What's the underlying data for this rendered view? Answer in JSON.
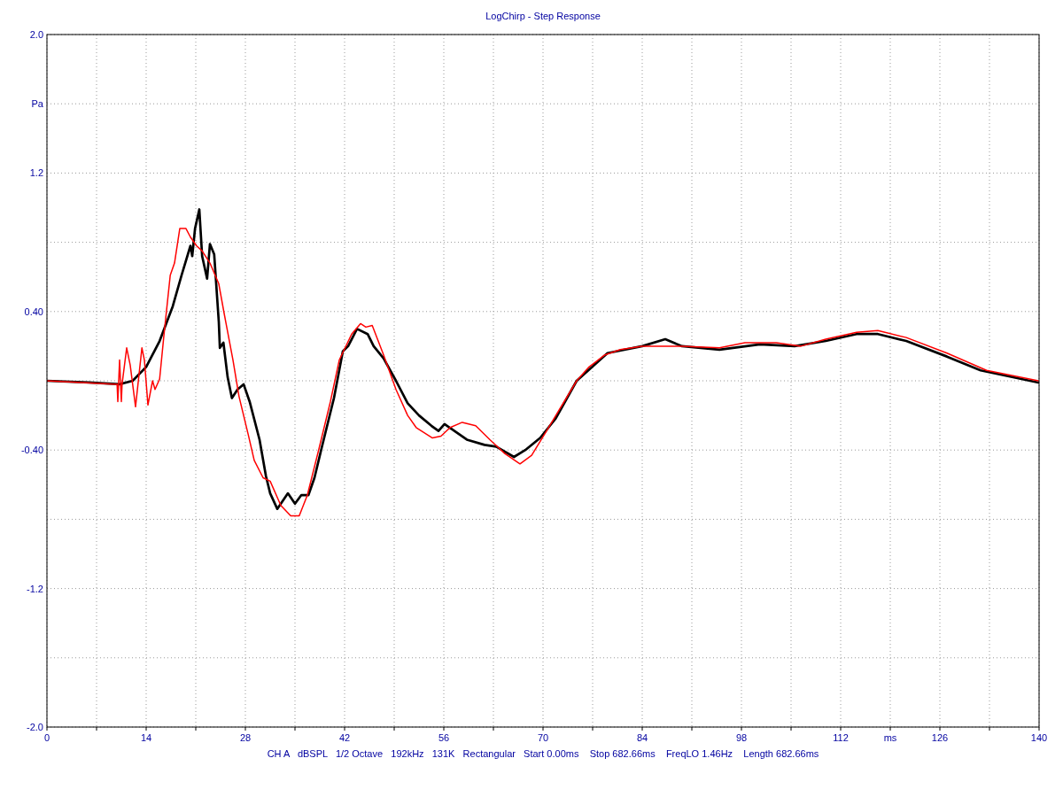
{
  "chart_data": {
    "type": "line",
    "title": "LogChirp - Step Response",
    "annotations": [
      "CH A   dBSPL   1/2 Octave   192kHz   131K   Rectangular   Start 0.00ms    Stop 682.66ms    FreqLO 1.46Hz    Length 682.66ms"
    ],
    "xlim": [
      0,
      140
    ],
    "ylim": [
      -2.0,
      2.0
    ],
    "xticks": [
      0,
      {
        "value": 7,
        "label": null
      },
      14,
      {
        "value": 21,
        "label": null
      },
      28,
      {
        "value": 35,
        "label": null
      },
      42,
      {
        "value": 49,
        "label": null
      },
      56,
      {
        "value": 63,
        "label": null
      },
      70,
      {
        "value": 77,
        "label": null
      },
      84,
      {
        "value": 91,
        "label": null
      },
      98,
      {
        "value": 105,
        "label": null
      },
      112,
      {
        "value": 119,
        "label": "ms"
      },
      126,
      {
        "value": 133,
        "label": null
      },
      140
    ],
    "yticks": [
      {
        "value": -2.0,
        "label": "-2.0"
      },
      {
        "value": -1.6,
        "label": null
      },
      -1.2,
      {
        "value": -0.8,
        "label": null
      },
      {
        "value": -0.4,
        "label": "-0.40"
      },
      {
        "value": 0,
        "label": null
      },
      {
        "value": 0.4,
        "label": "0.40"
      },
      {
        "value": 0.8,
        "label": null
      },
      1.2,
      {
        "value": 1.6,
        "label": "Pa"
      },
      {
        "value": 2.0,
        "label": "2.0"
      }
    ],
    "grid": true,
    "series": [
      {
        "color": "#000000",
        "x": [
          0,
          5.9,
          10.25,
          12.1,
          14,
          15.9,
          17.75,
          19,
          20.25,
          20.5,
          20.9,
          21.5,
          21.9,
          22.6,
          23,
          23.6,
          24.25,
          24.4,
          24.9,
          25.5,
          26.1,
          26.9,
          27.75,
          28.6,
          30,
          30.9,
          31.5,
          32.5,
          34,
          35,
          35.9,
          36.9,
          37.75,
          38.75,
          40.5,
          41.75,
          42.5,
          43.75,
          45.25,
          46.1,
          47.5,
          49.25,
          50.9,
          52.5,
          54.25,
          55.25,
          56.1,
          57.5,
          59.25,
          61.75,
          63.4,
          65.9,
          67.5,
          69.6,
          71.75,
          74.75,
          79.1,
          84,
          87.25,
          89.6,
          94.9,
          100.6,
          105.5,
          109.9,
          114.25,
          117.25,
          121.25,
          127,
          131.75,
          139.9
        ],
        "values": [
          0,
          -0.01,
          -0.02,
          0,
          0.08,
          0.23,
          0.43,
          0.61,
          0.78,
          0.72,
          0.88,
          0.99,
          0.72,
          0.59,
          0.79,
          0.73,
          0.34,
          0.19,
          0.22,
          0.02,
          -0.1,
          -0.05,
          -0.02,
          -0.12,
          -0.34,
          -0.55,
          -0.65,
          -0.74,
          -0.65,
          -0.71,
          -0.66,
          -0.66,
          -0.56,
          -0.39,
          -0.1,
          0.17,
          0.2,
          0.3,
          0.27,
          0.2,
          0.13,
          0,
          -0.13,
          -0.2,
          -0.26,
          -0.29,
          -0.25,
          -0.29,
          -0.34,
          -0.37,
          -0.38,
          -0.44,
          -0.4,
          -0.33,
          -0.22,
          0,
          0.16,
          0.2,
          0.24,
          0.2,
          0.18,
          0.21,
          0.2,
          0.23,
          0.27,
          0.27,
          0.23,
          0.14,
          0.06,
          -0.01
        ]
      },
      {
        "color": "#ff0000",
        "x": [
          0,
          9.9,
          10,
          10.25,
          10.5,
          10.6,
          11.25,
          11.75,
          12.5,
          13.4,
          13.75,
          14.25,
          14.9,
          15.25,
          15.9,
          16.5,
          17.4,
          18,
          18.75,
          19.6,
          20.25,
          21.1,
          21.9,
          23,
          24.25,
          25,
          26.25,
          27.1,
          28.4,
          29.25,
          30.5,
          31.5,
          33,
          34.4,
          35.6,
          36.75,
          38.4,
          40,
          41.25,
          43,
          44.25,
          45,
          45.9,
          47.5,
          49.25,
          50.9,
          52.1,
          54.4,
          55.6,
          56.9,
          58.6,
          60.5,
          62.5,
          64.6,
          66.75,
          68.4,
          70.5,
          74.75,
          76.5,
          78.75,
          80.9,
          84,
          89.6,
          94.9,
          98.5,
          102.9,
          106.4,
          109.9,
          114.25,
          117.25,
          121.25,
          127,
          132.6,
          139.9
        ],
        "values": [
          0,
          -0.02,
          -0.12,
          0.12,
          -0.12,
          -0.02,
          0.19,
          0.09,
          -0.15,
          0.19,
          0.12,
          -0.14,
          0,
          -0.05,
          0.01,
          0.26,
          0.61,
          0.68,
          0.88,
          0.88,
          0.83,
          0.78,
          0.75,
          0.68,
          0.56,
          0.39,
          0.12,
          -0.09,
          -0.31,
          -0.46,
          -0.56,
          -0.58,
          -0.72,
          -0.78,
          -0.78,
          -0.66,
          -0.39,
          -0.12,
          0.12,
          0.27,
          0.33,
          0.31,
          0.32,
          0.15,
          -0.05,
          -0.2,
          -0.27,
          -0.33,
          -0.32,
          -0.27,
          -0.24,
          -0.26,
          -0.34,
          -0.42,
          -0.48,
          -0.43,
          -0.29,
          0,
          0.08,
          0.15,
          0.18,
          0.2,
          0.2,
          0.19,
          0.22,
          0.22,
          0.2,
          0.24,
          0.28,
          0.29,
          0.25,
          0.16,
          0.06,
          0
        ]
      }
    ]
  }
}
